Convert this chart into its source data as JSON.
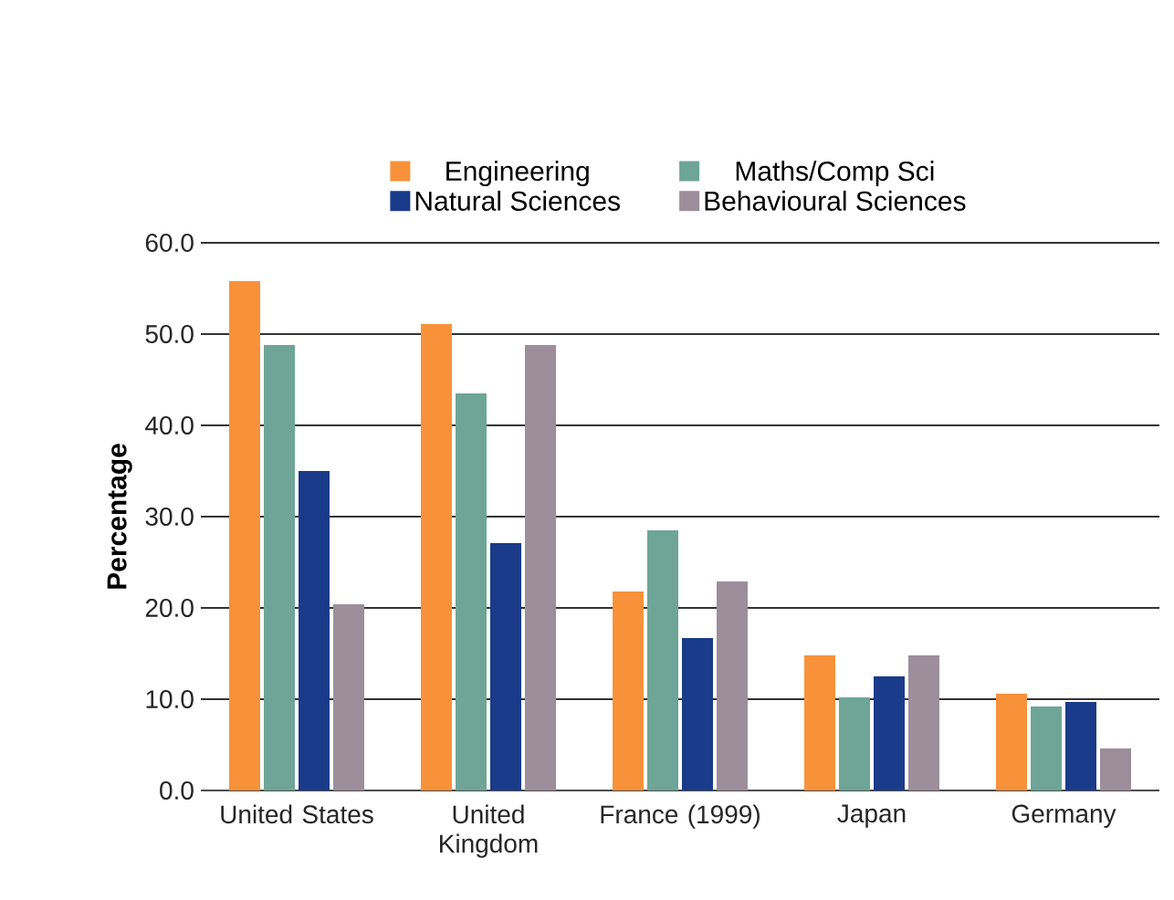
{
  "chart_data": {
    "type": "bar",
    "ylabel": "Percentage",
    "categories": [
      "United States",
      "United Kingdom",
      "France (1999)",
      "Japan",
      "Germany"
    ],
    "series": [
      {
        "name": "Engineering",
        "color": "#f7923a",
        "values": [
          55.8,
          51.1,
          21.8,
          14.8,
          10.6
        ]
      },
      {
        "name": "Maths/Comp Sci",
        "color": "#6ea596",
        "values": [
          48.8,
          43.5,
          28.5,
          10.2,
          9.2
        ]
      },
      {
        "name": "Natural Sciences",
        "color": "#1a3a8a",
        "values": [
          35.0,
          27.1,
          16.7,
          12.5,
          9.7
        ]
      },
      {
        "name": "Behavioural Sciences",
        "color": "#9c8e9b",
        "values": [
          20.4,
          48.8,
          22.9,
          14.8,
          4.6
        ]
      }
    ],
    "ylim": [
      0,
      60
    ],
    "yticks": [
      {
        "value": 0,
        "label": "0.0"
      },
      {
        "value": 10,
        "label": "10.0"
      },
      {
        "value": 20,
        "label": "20.0"
      },
      {
        "value": 30,
        "label": "30.0"
      },
      {
        "value": 40,
        "label": "40.0"
      },
      {
        "value": 50,
        "label": "50.0"
      },
      {
        "value": 60,
        "label": "60.0"
      }
    ],
    "grid": "y",
    "legend": "top"
  }
}
